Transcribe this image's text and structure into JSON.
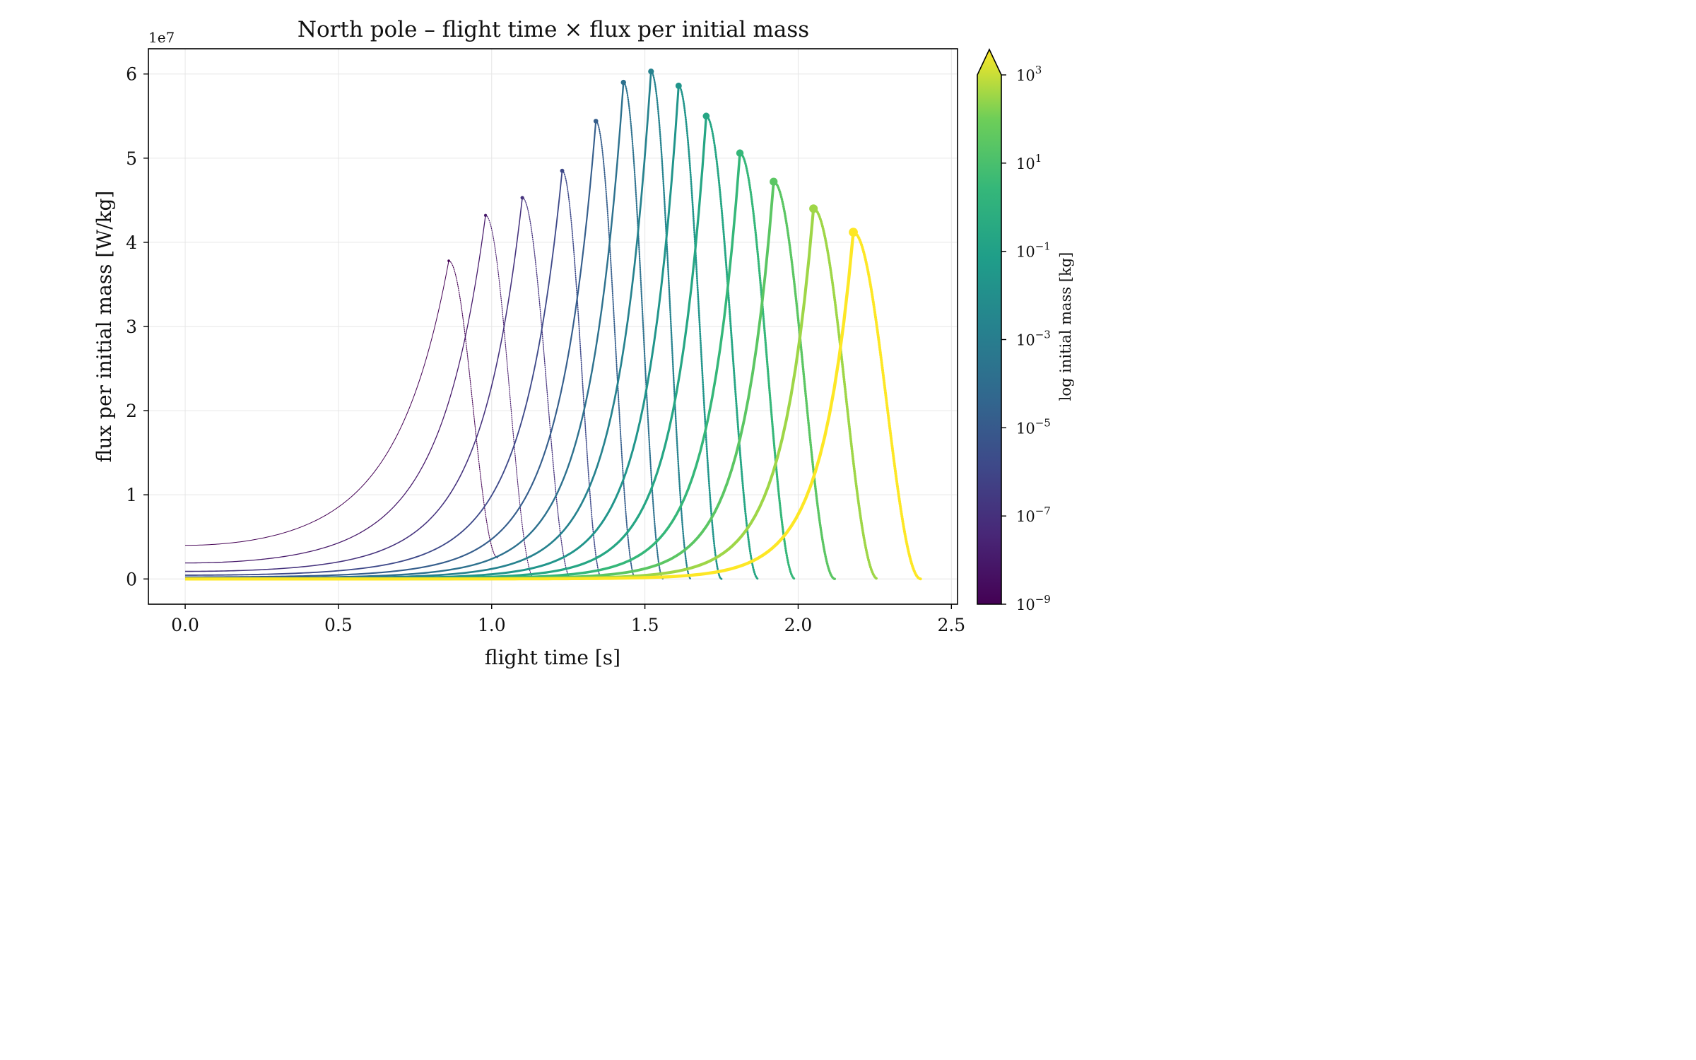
{
  "chart_data": {
    "type": "line",
    "title": "North pole – flight time × flux per initial mass",
    "xlabel": "flight time [s]",
    "ylabel": "flux per initial mass [W/kg]",
    "y_offset_label": "1e7",
    "xlim": [
      -0.12,
      2.52
    ],
    "ylim": [
      -0.3,
      6.3
    ],
    "xticks": [
      "0.0",
      "0.5",
      "1.0",
      "1.5",
      "2.0",
      "2.5"
    ],
    "yticks": [
      "0",
      "1",
      "2",
      "3",
      "4",
      "5",
      "6"
    ],
    "grid": true,
    "colorbar": {
      "label": "log initial mass [kg]",
      "scale": "log",
      "colormap": "viridis",
      "extend": "max",
      "ticks": [
        {
          "base": "10",
          "exp": "3"
        },
        {
          "base": "10",
          "exp": "1"
        },
        {
          "base": "10",
          "exp": "−1"
        },
        {
          "base": "10",
          "exp": "−3"
        },
        {
          "base": "10",
          "exp": "−5"
        },
        {
          "base": "10",
          "exp": "−7"
        },
        {
          "base": "10",
          "exp": "−9"
        }
      ],
      "ticks_exponents": [
        3,
        1,
        -1,
        -3,
        -5,
        -7,
        -9
      ],
      "range_exponents": [
        -9,
        3
      ]
    },
    "series": [
      {
        "log_mass": -9,
        "y0": 0.4,
        "peak_x": 0.86,
        "peak_y": 3.78,
        "end_x": 1.02,
        "end_y": 0.25
      },
      {
        "log_mass": -8,
        "y0": 0.19,
        "peak_x": 0.98,
        "peak_y": 4.32,
        "end_x": 1.14,
        "end_y": 0.0
      },
      {
        "log_mass": -7,
        "y0": 0.09,
        "peak_x": 1.1,
        "peak_y": 4.53,
        "end_x": 1.26,
        "end_y": 0.0
      },
      {
        "log_mass": -6,
        "y0": 0.045,
        "peak_x": 1.23,
        "peak_y": 4.85,
        "end_x": 1.36,
        "end_y": 0.0
      },
      {
        "log_mass": -5,
        "y0": 0.022,
        "peak_x": 1.34,
        "peak_y": 5.44,
        "end_x": 1.47,
        "end_y": 0.0
      },
      {
        "log_mass": -4,
        "y0": 0.011,
        "peak_x": 1.43,
        "peak_y": 5.9,
        "end_x": 1.56,
        "end_y": 0.0
      },
      {
        "log_mass": -3,
        "y0": 0.006,
        "peak_x": 1.52,
        "peak_y": 6.03,
        "end_x": 1.65,
        "end_y": 0.0
      },
      {
        "log_mass": -2,
        "y0": 0.003,
        "peak_x": 1.61,
        "peak_y": 5.86,
        "end_x": 1.75,
        "end_y": 0.0
      },
      {
        "log_mass": -1,
        "y0": 0.0015,
        "peak_x": 1.7,
        "peak_y": 5.5,
        "end_x": 1.87,
        "end_y": 0.0
      },
      {
        "log_mass": 0,
        "y0": 0.0008,
        "peak_x": 1.81,
        "peak_y": 5.06,
        "end_x": 1.99,
        "end_y": 0.0
      },
      {
        "log_mass": 1,
        "y0": 0.0004,
        "peak_x": 1.92,
        "peak_y": 4.72,
        "end_x": 2.12,
        "end_y": 0.0
      },
      {
        "log_mass": 2,
        "y0": 0.0002,
        "peak_x": 2.05,
        "peak_y": 4.4,
        "end_x": 2.26,
        "end_y": 0.0
      },
      {
        "log_mass": 3,
        "y0": 0.0001,
        "peak_x": 2.18,
        "peak_y": 4.12,
        "end_x": 2.4,
        "end_y": 0.0
      }
    ]
  }
}
